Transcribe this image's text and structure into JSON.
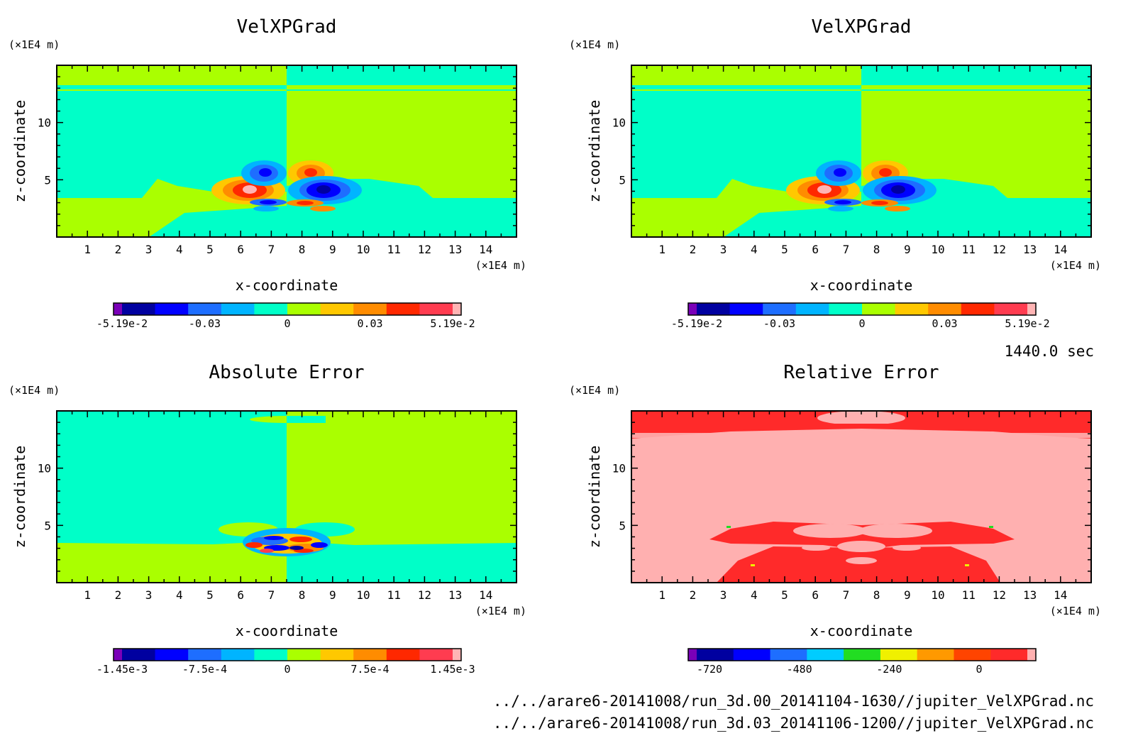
{
  "time_label": "1440.0 sec",
  "file_paths": [
    "../../arare6-20141008/run_3d.00_20141104-1630//jupiter_VelXPGrad.nc",
    "../../arare6-20141008/run_3d.03_20141106-1200//jupiter_VelXPGrad.nc"
  ],
  "chart_data": [
    {
      "type": "heatmap",
      "title": "VelXPGrad",
      "xlabel": "x-coordinate",
      "ylabel": "z-coordinate",
      "x_unit": "(×1E4 m)",
      "y_unit": "(×1E4 m)",
      "xlim": [
        0,
        15
      ],
      "ylim": [
        0,
        15
      ],
      "x_ticks": [
        "1",
        "2",
        "3",
        "4",
        "5",
        "6",
        "7",
        "8",
        "9",
        "10",
        "11",
        "12",
        "13",
        "14"
      ],
      "y_ticks": [
        "5",
        "10"
      ],
      "colorbar": {
        "tick_labels": [
          "-5.19e-2",
          "-0.03",
          "0",
          "0.03",
          "5.19e-2"
        ],
        "colors": [
          "#7a00b8",
          "#0000a0",
          "#0000ff",
          "#1e6eff",
          "#00b4ff",
          "#00ffc8",
          "#aaff00",
          "#ffc800",
          "#ff8c00",
          "#ff2800",
          "#ff3c50",
          "#ffb4b4"
        ]
      }
    },
    {
      "type": "heatmap",
      "title": "VelXPGrad",
      "xlabel": "x-coordinate",
      "ylabel": "z-coordinate",
      "x_unit": "(×1E4 m)",
      "y_unit": "(×1E4 m)",
      "xlim": [
        0,
        15
      ],
      "ylim": [
        0,
        15
      ],
      "x_ticks": [
        "1",
        "2",
        "3",
        "4",
        "5",
        "6",
        "7",
        "8",
        "9",
        "10",
        "11",
        "12",
        "13",
        "14"
      ],
      "y_ticks": [
        "5",
        "10"
      ],
      "colorbar": {
        "tick_labels": [
          "-5.19e-2",
          "-0.03",
          "0",
          "0.03",
          "5.19e-2"
        ],
        "colors": [
          "#7a00b8",
          "#0000a0",
          "#0000ff",
          "#1e6eff",
          "#00b4ff",
          "#00ffc8",
          "#aaff00",
          "#ffc800",
          "#ff8c00",
          "#ff2800",
          "#ff3c50",
          "#ffb4b4"
        ]
      }
    },
    {
      "type": "heatmap",
      "title": "Absolute Error",
      "xlabel": "x-coordinate",
      "ylabel": "z-coordinate",
      "x_unit": "(×1E4 m)",
      "y_unit": "(×1E4 m)",
      "xlim": [
        0,
        15
      ],
      "ylim": [
        0,
        15
      ],
      "x_ticks": [
        "1",
        "2",
        "3",
        "4",
        "5",
        "6",
        "7",
        "8",
        "9",
        "10",
        "11",
        "12",
        "13",
        "14"
      ],
      "y_ticks": [
        "5",
        "10"
      ],
      "colorbar": {
        "tick_labels": [
          "-1.45e-3",
          "-7.5e-4",
          "0",
          "7.5e-4",
          "1.45e-3"
        ],
        "colors": [
          "#7a00b8",
          "#0000a0",
          "#0000ff",
          "#1e6eff",
          "#00b4ff",
          "#00ffc8",
          "#aaff00",
          "#ffc800",
          "#ff8c00",
          "#ff2800",
          "#ff3c50",
          "#ffb4b4"
        ]
      }
    },
    {
      "type": "heatmap",
      "title": "Relative Error",
      "xlabel": "x-coordinate",
      "ylabel": "z-coordinate",
      "x_unit": "(×1E4 m)",
      "y_unit": "(×1E4 m)",
      "xlim": [
        0,
        15
      ],
      "ylim": [
        0,
        15
      ],
      "x_ticks": [
        "1",
        "2",
        "3",
        "4",
        "5",
        "6",
        "7",
        "8",
        "9",
        "10",
        "11",
        "12",
        "13",
        "14"
      ],
      "y_ticks": [
        "5",
        "10"
      ],
      "colorbar": {
        "tick_labels": [
          "-720",
          "-480",
          "-240",
          "0"
        ],
        "colors": [
          "#7a00b8",
          "#0000a0",
          "#0000ff",
          "#1e6eff",
          "#00ccff",
          "#22dd22",
          "#f0f000",
          "#ff9900",
          "#ff4400",
          "#ff2a2a",
          "#ffb0b0"
        ]
      }
    }
  ]
}
